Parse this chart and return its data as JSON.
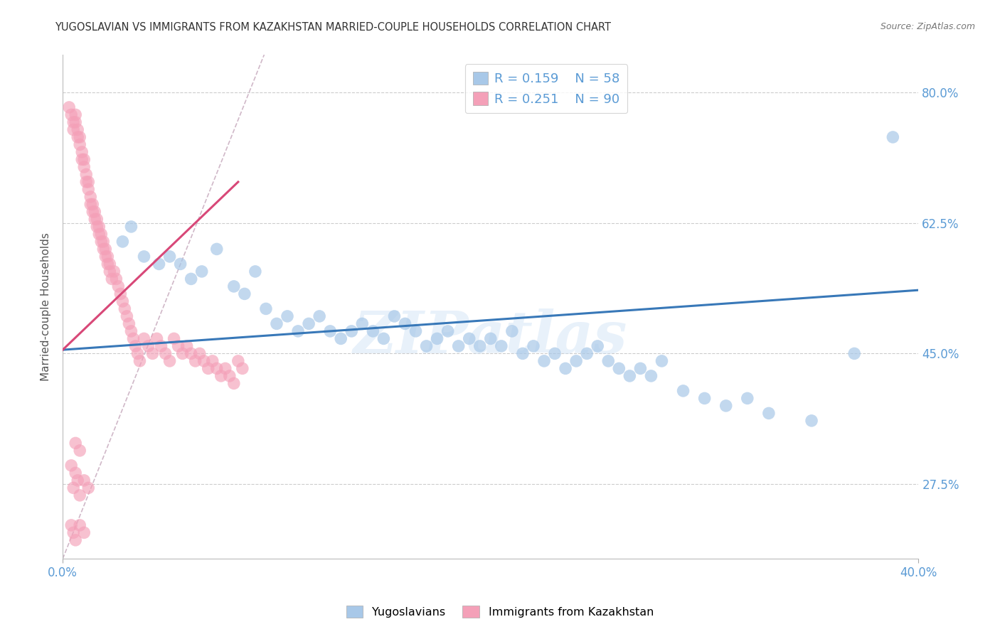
{
  "title": "YUGOSLAVIAN VS IMMIGRANTS FROM KAZAKHSTAN MARRIED-COUPLE HOUSEHOLDS CORRELATION CHART",
  "source": "Source: ZipAtlas.com",
  "ylabel": "Married-couple Households",
  "ytick_vals": [
    0.275,
    0.45,
    0.625,
    0.8
  ],
  "ytick_labels": [
    "27.5%",
    "45.0%",
    "62.5%",
    "80.0%"
  ],
  "blue_color": "#a8c8e8",
  "pink_color": "#f4a0b8",
  "blue_line_color": "#3878b8",
  "pink_line_color": "#d84878",
  "diag_color": "#d0b8c8",
  "legend_blue_R": "R = 0.159",
  "legend_blue_N": "N = 58",
  "legend_pink_R": "R = 0.251",
  "legend_pink_N": "N = 90",
  "blue_scatter_x": [
    0.028,
    0.032,
    0.038,
    0.045,
    0.05,
    0.055,
    0.06,
    0.065,
    0.072,
    0.08,
    0.085,
    0.09,
    0.095,
    0.1,
    0.105,
    0.11,
    0.115,
    0.12,
    0.125,
    0.13,
    0.135,
    0.14,
    0.145,
    0.15,
    0.155,
    0.16,
    0.165,
    0.17,
    0.175,
    0.18,
    0.185,
    0.19,
    0.195,
    0.2,
    0.205,
    0.21,
    0.215,
    0.22,
    0.225,
    0.23,
    0.235,
    0.24,
    0.245,
    0.25,
    0.255,
    0.26,
    0.265,
    0.27,
    0.275,
    0.28,
    0.29,
    0.3,
    0.31,
    0.32,
    0.33,
    0.35,
    0.37,
    0.388
  ],
  "blue_scatter_y": [
    0.6,
    0.62,
    0.58,
    0.57,
    0.58,
    0.57,
    0.55,
    0.56,
    0.59,
    0.54,
    0.53,
    0.56,
    0.51,
    0.49,
    0.5,
    0.48,
    0.49,
    0.5,
    0.48,
    0.47,
    0.48,
    0.49,
    0.48,
    0.47,
    0.5,
    0.49,
    0.48,
    0.46,
    0.47,
    0.48,
    0.46,
    0.47,
    0.46,
    0.47,
    0.46,
    0.48,
    0.45,
    0.46,
    0.44,
    0.45,
    0.43,
    0.44,
    0.45,
    0.46,
    0.44,
    0.43,
    0.42,
    0.43,
    0.42,
    0.44,
    0.4,
    0.39,
    0.38,
    0.39,
    0.37,
    0.36,
    0.45,
    0.74
  ],
  "pink_scatter_x": [
    0.003,
    0.004,
    0.005,
    0.005,
    0.006,
    0.006,
    0.007,
    0.007,
    0.008,
    0.008,
    0.009,
    0.009,
    0.01,
    0.01,
    0.011,
    0.011,
    0.012,
    0.012,
    0.013,
    0.013,
    0.014,
    0.014,
    0.015,
    0.015,
    0.016,
    0.016,
    0.017,
    0.017,
    0.018,
    0.018,
    0.019,
    0.019,
    0.02,
    0.02,
    0.021,
    0.021,
    0.022,
    0.022,
    0.023,
    0.024,
    0.025,
    0.026,
    0.027,
    0.028,
    0.029,
    0.03,
    0.031,
    0.032,
    0.033,
    0.034,
    0.035,
    0.036,
    0.038,
    0.04,
    0.042,
    0.044,
    0.046,
    0.048,
    0.05,
    0.052,
    0.054,
    0.056,
    0.058,
    0.06,
    0.062,
    0.064,
    0.066,
    0.068,
    0.07,
    0.072,
    0.074,
    0.076,
    0.078,
    0.08,
    0.082,
    0.084,
    0.004,
    0.006,
    0.007,
    0.005,
    0.008,
    0.01,
    0.012,
    0.006,
    0.008,
    0.004,
    0.005,
    0.006,
    0.008,
    0.01
  ],
  "pink_scatter_y": [
    0.78,
    0.77,
    0.76,
    0.75,
    0.77,
    0.76,
    0.75,
    0.74,
    0.73,
    0.74,
    0.72,
    0.71,
    0.7,
    0.71,
    0.69,
    0.68,
    0.67,
    0.68,
    0.66,
    0.65,
    0.64,
    0.65,
    0.63,
    0.64,
    0.62,
    0.63,
    0.61,
    0.62,
    0.6,
    0.61,
    0.59,
    0.6,
    0.58,
    0.59,
    0.57,
    0.58,
    0.56,
    0.57,
    0.55,
    0.56,
    0.55,
    0.54,
    0.53,
    0.52,
    0.51,
    0.5,
    0.49,
    0.48,
    0.47,
    0.46,
    0.45,
    0.44,
    0.47,
    0.46,
    0.45,
    0.47,
    0.46,
    0.45,
    0.44,
    0.47,
    0.46,
    0.45,
    0.46,
    0.45,
    0.44,
    0.45,
    0.44,
    0.43,
    0.44,
    0.43,
    0.42,
    0.43,
    0.42,
    0.41,
    0.44,
    0.43,
    0.3,
    0.29,
    0.28,
    0.27,
    0.26,
    0.28,
    0.27,
    0.33,
    0.32,
    0.22,
    0.21,
    0.2,
    0.22,
    0.21
  ],
  "blue_trend": [
    0.0,
    0.4,
    0.455,
    0.535
  ],
  "pink_trend": [
    0.0,
    0.082,
    0.455,
    0.68
  ],
  "diag_trend": [
    0.0,
    0.115,
    0.175,
    1.0
  ],
  "xlim": [
    0.0,
    0.4
  ],
  "ylim": [
    0.175,
    0.85
  ],
  "watermark": "ZIPatlas",
  "bg_color": "#ffffff",
  "tick_color": "#5b9bd5",
  "title_color": "#333333",
  "source_color": "#777777",
  "label_color": "#555555"
}
